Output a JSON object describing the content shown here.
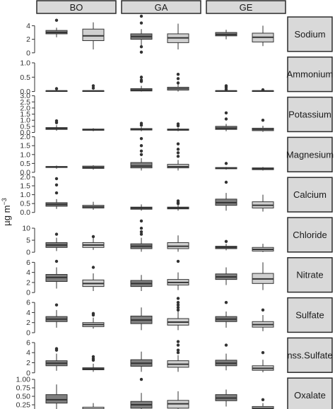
{
  "chart_data": {
    "type": "boxplot",
    "ylabel": {
      "base": "µg m",
      "sup": "−3"
    },
    "columns": [
      "BO",
      "GA",
      "GE"
    ],
    "rows": [
      {
        "label": "Sodium",
        "ylim": [
          0,
          5.5
        ],
        "ticks": [
          0,
          2,
          4
        ],
        "tick_labels": [
          "0",
          "2",
          "4"
        ],
        "boxes": [
          [
            {
              "q1": 2.8,
              "med": 3.0,
              "q3": 3.3,
              "lo": 2.3,
              "hi": 3.7,
              "out": [
                4.8
              ]
            },
            {
              "q1": 1.8,
              "med": 2.5,
              "q3": 3.5,
              "lo": 0.5,
              "hi": 4.5,
              "out": []
            }
          ],
          [
            {
              "q1": 2.0,
              "med": 2.4,
              "q3": 2.8,
              "lo": 1.0,
              "hi": 3.5,
              "out": [
                0.1,
                0.9,
                4.4,
                5.4
              ]
            },
            {
              "q1": 1.5,
              "med": 2.2,
              "q3": 2.8,
              "lo": 0.5,
              "hi": 4.3,
              "out": []
            }
          ],
          [
            {
              "q1": 2.5,
              "med": 2.7,
              "q3": 3.0,
              "lo": 2.0,
              "hi": 3.4,
              "out": []
            },
            {
              "q1": 1.6,
              "med": 2.3,
              "q3": 2.9,
              "lo": 1.0,
              "hi": 4.0,
              "out": []
            }
          ]
        ]
      },
      {
        "label": "Ammonium",
        "ylim": [
          -0.05,
          1.25
        ],
        "ticks": [
          0,
          0.5,
          1.0
        ],
        "tick_labels": [
          "0.0",
          "0.5",
          "1.0"
        ],
        "boxes": [
          [
            {
              "q1": 0.01,
              "med": 0.02,
              "q3": 0.03,
              "lo": 0.0,
              "hi": 0.05,
              "out": [
                0.1
              ]
            },
            {
              "q1": 0.01,
              "med": 0.02,
              "q3": 0.03,
              "lo": 0.0,
              "hi": 0.05,
              "out": [
                0.12,
                0.2
              ]
            }
          ],
          [
            {
              "q1": 0.02,
              "med": 0.05,
              "q3": 0.1,
              "lo": 0.0,
              "hi": 0.2,
              "out": [
                0.35,
                0.4,
                0.5
              ]
            },
            {
              "q1": 0.05,
              "med": 0.1,
              "q3": 0.15,
              "lo": 0.0,
              "hi": 0.28,
              "out": [
                0.3,
                0.45,
                0.6
              ]
            }
          ],
          [
            {
              "q1": 0.01,
              "med": 0.02,
              "q3": 0.03,
              "lo": 0.0,
              "hi": 0.05,
              "out": [
                0.08,
                0.15,
                0.2
              ]
            },
            {
              "q1": 0.01,
              "med": 0.02,
              "q3": 0.03,
              "lo": 0.0,
              "hi": 0.05,
              "out": [
                0.06
              ]
            }
          ]
        ]
      },
      {
        "label": "Potassium",
        "ylim": [
          -0.05,
          3.0
        ],
        "ticks": [
          0,
          0.5,
          1.0,
          1.5,
          2.0,
          2.5,
          3.0
        ],
        "tick_labels": [
          "0.0",
          "0.5",
          "1.0",
          "1.5",
          "2.0",
          "2.5",
          "3.0"
        ],
        "boxes": [
          [
            {
              "q1": 0.25,
              "med": 0.32,
              "q3": 0.4,
              "lo": 0.15,
              "hi": 0.6,
              "out": [
                0.8,
                0.95
              ]
            },
            {
              "q1": 0.18,
              "med": 0.22,
              "q3": 0.28,
              "lo": 0.1,
              "hi": 0.35,
              "out": []
            }
          ],
          [
            {
              "q1": 0.2,
              "med": 0.25,
              "q3": 0.32,
              "lo": 0.1,
              "hi": 0.45,
              "out": [
                0.6,
                0.75
              ]
            },
            {
              "q1": 0.18,
              "med": 0.22,
              "q3": 0.28,
              "lo": 0.1,
              "hi": 0.4,
              "out": [
                0.55,
                0.7
              ]
            }
          ],
          [
            {
              "q1": 0.25,
              "med": 0.35,
              "q3": 0.5,
              "lo": 0.1,
              "hi": 0.7,
              "out": [
                1.1,
                1.6
              ]
            },
            {
              "q1": 0.15,
              "med": 0.25,
              "q3": 0.35,
              "lo": 0.05,
              "hi": 0.55,
              "out": [
                1.0
              ]
            }
          ]
        ]
      },
      {
        "label": "Magnesium",
        "ylim": [
          -0.05,
          2.05
        ],
        "ticks": [
          0,
          0.5,
          1.0,
          1.5,
          2.0
        ],
        "tick_labels": [
          "0.0",
          "0.5",
          "1.0",
          "1.5",
          "2.0"
        ],
        "boxes": [
          [
            {
              "q1": 0.27,
              "med": 0.3,
              "q3": 0.33,
              "lo": 0.2,
              "hi": 0.38,
              "out": []
            },
            {
              "q1": 0.22,
              "med": 0.28,
              "q3": 0.35,
              "lo": 0.15,
              "hi": 0.4,
              "out": []
            }
          ],
          [
            {
              "q1": 0.25,
              "med": 0.35,
              "q3": 0.55,
              "lo": 0.1,
              "hi": 0.8,
              "out": [
                1.0,
                1.2,
                1.5,
                1.9
              ]
            },
            {
              "q1": 0.25,
              "med": 0.32,
              "q3": 0.45,
              "lo": 0.1,
              "hi": 0.7,
              "out": [
                0.9,
                1.1,
                1.3,
                1.6
              ]
            }
          ],
          [
            {
              "q1": 0.2,
              "med": 0.23,
              "q3": 0.27,
              "lo": 0.15,
              "hi": 0.3,
              "out": [
                0.5
              ]
            },
            {
              "q1": 0.15,
              "med": 0.2,
              "q3": 0.25,
              "lo": 0.1,
              "hi": 0.3,
              "out": []
            }
          ]
        ]
      },
      {
        "label": "Calcium",
        "ylim": [
          -0.05,
          2.05
        ],
        "ticks": [
          0,
          0.5,
          1.0,
          1.5,
          2.0
        ],
        "tick_labels": [
          "0.0",
          "0.5",
          "1.0",
          "1.5",
          "2.0"
        ],
        "boxes": [
          [
            {
              "q1": 0.35,
              "med": 0.45,
              "q3": 0.55,
              "lo": 0.2,
              "hi": 0.75,
              "out": [
                1.1,
                1.55,
                1.9
              ]
            },
            {
              "q1": 0.25,
              "med": 0.32,
              "q3": 0.4,
              "lo": 0.15,
              "hi": 0.6,
              "out": []
            }
          ],
          [
            {
              "q1": 0.18,
              "med": 0.25,
              "q3": 0.3,
              "lo": 0.1,
              "hi": 0.45,
              "out": []
            },
            {
              "q1": 0.2,
              "med": 0.25,
              "q3": 0.3,
              "lo": 0.1,
              "hi": 0.45,
              "out": [
                0.5,
                0.55,
                0.65
              ]
            }
          ],
          [
            {
              "q1": 0.4,
              "med": 0.55,
              "q3": 0.75,
              "lo": 0.1,
              "hi": 1.1,
              "out": [
                1.7
              ]
            },
            {
              "q1": 0.25,
              "med": 0.4,
              "q3": 0.6,
              "lo": 0.05,
              "hi": 1.0,
              "out": []
            }
          ]
        ]
      },
      {
        "label": "Chloride",
        "ylim": [
          -0.5,
          15
        ],
        "ticks": [
          0,
          5,
          10
        ],
        "tick_labels": [
          "0",
          "5",
          "10"
        ],
        "boxes": [
          [
            {
              "q1": 2.0,
              "med": 3.0,
              "q3": 4.0,
              "lo": 0.5,
              "hi": 6.0,
              "out": [
                7.5
              ]
            },
            {
              "q1": 2.0,
              "med": 3.0,
              "q3": 4.0,
              "lo": 1.0,
              "hi": 6.0,
              "out": [
                6.5
              ]
            }
          ],
          [
            {
              "q1": 1.5,
              "med": 2.5,
              "q3": 3.5,
              "lo": 0.2,
              "hi": 6.0,
              "out": [
                7.5,
                8.5,
                10.0,
                13.0
              ]
            },
            {
              "q1": 1.5,
              "med": 2.5,
              "q3": 4.0,
              "lo": 0.2,
              "hi": 7.0,
              "out": []
            }
          ],
          [
            {
              "q1": 1.5,
              "med": 2.0,
              "q3": 2.5,
              "lo": 0.8,
              "hi": 3.5,
              "out": [
                4.5
              ]
            },
            {
              "q1": 0.5,
              "med": 1.2,
              "q3": 2.0,
              "lo": 0.1,
              "hi": 3.5,
              "out": []
            }
          ]
        ]
      },
      {
        "label": "Nitrate",
        "ylim": [
          -0.2,
          7.2
        ],
        "ticks": [
          0,
          2,
          4,
          6
        ],
        "tick_labels": [
          "0",
          "2",
          "4",
          "6"
        ],
        "boxes": [
          [
            {
              "q1": 2.2,
              "med": 3.0,
              "q3": 3.6,
              "lo": 0.8,
              "hi": 5.0,
              "out": [
                6.2
              ]
            },
            {
              "q1": 1.2,
              "med": 1.8,
              "q3": 2.5,
              "lo": 0.3,
              "hi": 3.8,
              "out": [
                5.0
              ]
            }
          ],
          [
            {
              "q1": 1.2,
              "med": 1.8,
              "q3": 2.4,
              "lo": 0.3,
              "hi": 3.5,
              "out": []
            },
            {
              "q1": 1.5,
              "med": 2.0,
              "q3": 2.6,
              "lo": 0.5,
              "hi": 4.0,
              "out": [
                6.2
              ]
            }
          ],
          [
            {
              "q1": 2.6,
              "med": 3.1,
              "q3": 3.7,
              "lo": 1.5,
              "hi": 5.0,
              "out": []
            },
            {
              "q1": 1.8,
              "med": 2.7,
              "q3": 3.8,
              "lo": 0.5,
              "hi": 6.0,
              "out": []
            }
          ]
        ]
      },
      {
        "label": "Sulfate",
        "ylim": [
          -0.2,
          7.2
        ],
        "ticks": [
          0,
          2,
          4,
          6
        ],
        "tick_labels": [
          "0",
          "2",
          "4",
          "6"
        ],
        "boxes": [
          [
            {
              "q1": 2.2,
              "med": 2.7,
              "q3": 3.2,
              "lo": 1.0,
              "hi": 4.5,
              "out": [
                5.5
              ]
            },
            {
              "q1": 1.2,
              "med": 1.6,
              "q3": 2.0,
              "lo": 0.8,
              "hi": 3.0,
              "out": [
                3.5,
                3.8
              ]
            }
          ],
          [
            {
              "q1": 1.8,
              "med": 2.5,
              "q3": 3.3,
              "lo": 0.5,
              "hi": 5.0,
              "out": []
            },
            {
              "q1": 1.5,
              "med": 2.1,
              "q3": 2.8,
              "lo": 0.5,
              "hi": 4.2,
              "out": [
                4.5,
                5.0,
                5.5,
                6.0,
                6.8
              ]
            }
          ],
          [
            {
              "q1": 2.2,
              "med": 2.7,
              "q3": 3.2,
              "lo": 1.0,
              "hi": 4.2,
              "out": [
                6.0
              ]
            },
            {
              "q1": 1.1,
              "med": 1.6,
              "q3": 2.2,
              "lo": 0.3,
              "hi": 3.5,
              "out": [
                4.5
              ]
            }
          ]
        ]
      },
      {
        "label": "nss.Sulfate",
        "ylim": [
          -0.2,
          7.2
        ],
        "ticks": [
          0,
          2,
          4,
          6
        ],
        "tick_labels": [
          "0",
          "2",
          "4",
          "6"
        ],
        "boxes": [
          [
            {
              "q1": 1.4,
              "med": 1.9,
              "q3": 2.4,
              "lo": 0.4,
              "hi": 3.8,
              "out": [
                4.5,
                4.8
              ]
            },
            {
              "q1": 0.6,
              "med": 0.8,
              "q3": 1.0,
              "lo": 0.2,
              "hi": 1.8,
              "out": [
                2.5,
                2.8,
                3.2
              ]
            }
          ],
          [
            {
              "q1": 1.3,
              "med": 1.9,
              "q3": 2.6,
              "lo": 0.2,
              "hi": 4.2,
              "out": []
            },
            {
              "q1": 1.1,
              "med": 1.7,
              "q3": 2.4,
              "lo": 0.2,
              "hi": 3.5,
              "out": [
                4.0,
                4.5,
                5.5,
                6.2
              ]
            }
          ],
          [
            {
              "q1": 1.4,
              "med": 1.9,
              "q3": 2.5,
              "lo": 0.5,
              "hi": 3.8,
              "out": [
                5.5
              ]
            },
            {
              "q1": 0.5,
              "med": 0.9,
              "q3": 1.4,
              "lo": 0.1,
              "hi": 2.6,
              "out": [
                4.0
              ]
            }
          ]
        ]
      },
      {
        "label": "Oxalate",
        "ylim": [
          -0.02,
          1.08
        ],
        "ticks": [
          0,
          0.25,
          0.5,
          0.75,
          1.0
        ],
        "tick_labels": [
          "0.00",
          "0.25",
          "0.50",
          "0.75",
          "1.00"
        ],
        "boxes": [
          [
            {
              "q1": 0.3,
              "med": 0.4,
              "q3": 0.55,
              "lo": 0.1,
              "hi": 0.85,
              "out": []
            },
            {
              "q1": 0.08,
              "med": 0.12,
              "q3": 0.18,
              "lo": 0.02,
              "hi": 0.3,
              "out": []
            }
          ],
          [
            {
              "q1": 0.15,
              "med": 0.25,
              "q3": 0.35,
              "lo": 0.03,
              "hi": 0.6,
              "out": [
                1.0
              ]
            },
            {
              "q1": 0.15,
              "med": 0.28,
              "q3": 0.38,
              "lo": 0.02,
              "hi": 0.65,
              "out": []
            }
          ],
          [
            {
              "q1": 0.37,
              "med": 0.45,
              "q3": 0.55,
              "lo": 0.2,
              "hi": 0.7,
              "out": []
            },
            {
              "q1": 0.1,
              "med": 0.15,
              "q3": 0.2,
              "lo": 0.05,
              "hi": 0.3,
              "out": [
                0.4
              ]
            }
          ]
        ]
      }
    ],
    "colors": {
      "dark": "#7f7f7f",
      "light": "#d0d0d0",
      "strip": "#d9d9d9",
      "outline": "#2b2b2b"
    },
    "grid": false,
    "legend": "none"
  }
}
